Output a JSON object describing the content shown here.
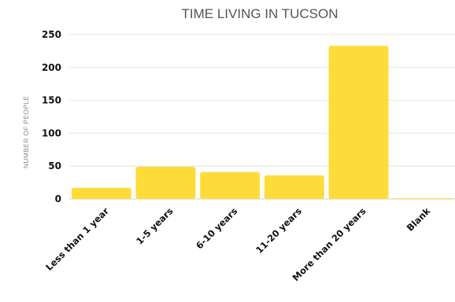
{
  "chart_data": {
    "type": "bar",
    "title": "TIME LIVING IN TUCSON",
    "ylabel": "NUMBER OF PEOPLE",
    "xlabel": "",
    "categories": [
      "Less than 1 year",
      "1-5 years",
      "6-10 years",
      "11-20 years",
      "More than 20 years",
      "Blank"
    ],
    "values": [
      17,
      49,
      41,
      36,
      233,
      1
    ],
    "ylim": [
      0,
      250
    ],
    "yticks": [
      0,
      50,
      100,
      150,
      200,
      250
    ],
    "grid": true,
    "legend": "none",
    "bar_color": "#FDDC3A"
  }
}
